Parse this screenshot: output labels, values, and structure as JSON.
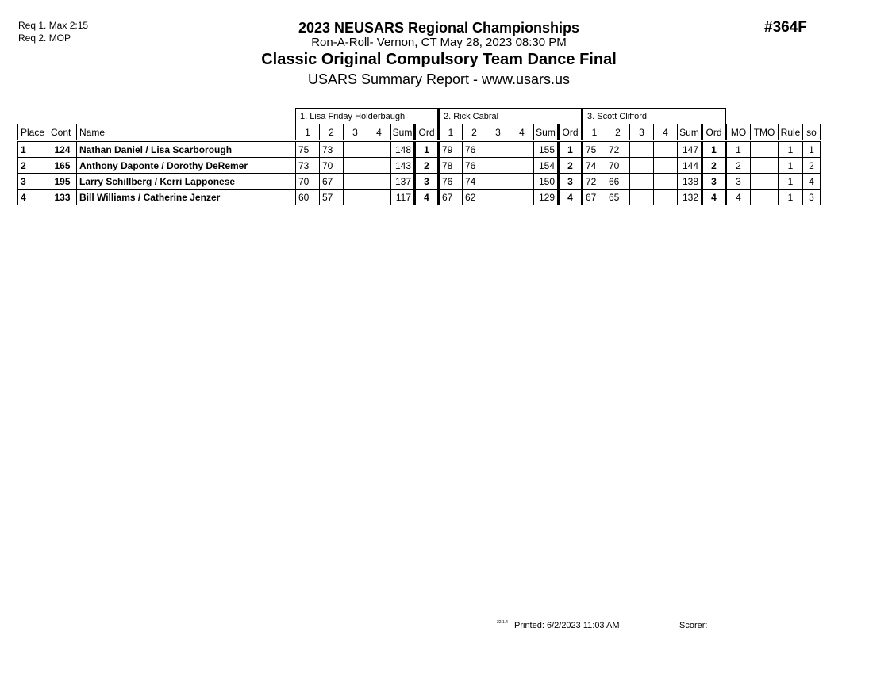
{
  "requirements": [
    "Req  1.  Max 2:15",
    "Req  2.  MOP"
  ],
  "event_code": "#364F",
  "title": "2023 NEUSARS Regional Championships",
  "venue_line": "Ron-A-Roll- Vernon, CT  May 28, 2023  08:30 PM",
  "event_name": "Classic Original Compulsory Team Dance Final",
  "report_line": "USARS Summary Report - www.usars.us",
  "judges": [
    "1.  Lisa Friday Holderbaugh",
    "2.  Rick Cabral",
    "3.  Scott Clifford"
  ],
  "headers": {
    "place": "Place",
    "cont": "Cont",
    "name": "Name",
    "marks": [
      "1",
      "2",
      "3",
      "4"
    ],
    "sum": "Sum",
    "ord": "Ord",
    "mo": "MO",
    "tmo": "TMO",
    "rule": "Rule",
    "so": "so"
  },
  "rows": [
    {
      "place": "1",
      "cont": "124",
      "name": "Nathan Daniel / Lisa Scarborough",
      "judges": [
        {
          "m": [
            "75",
            "73",
            "",
            ""
          ],
          "sum": "148",
          "ord": "1"
        },
        {
          "m": [
            "79",
            "76",
            "",
            ""
          ],
          "sum": "155",
          "ord": "1"
        },
        {
          "m": [
            "75",
            "72",
            "",
            ""
          ],
          "sum": "147",
          "ord": "1"
        }
      ],
      "mo": "1",
      "tmo": "",
      "rule": "1",
      "so": "1"
    },
    {
      "place": "2",
      "cont": "165",
      "name": "Anthony Daponte / Dorothy DeRemer",
      "judges": [
        {
          "m": [
            "73",
            "70",
            "",
            ""
          ],
          "sum": "143",
          "ord": "2"
        },
        {
          "m": [
            "78",
            "76",
            "",
            ""
          ],
          "sum": "154",
          "ord": "2"
        },
        {
          "m": [
            "74",
            "70",
            "",
            ""
          ],
          "sum": "144",
          "ord": "2"
        }
      ],
      "mo": "2",
      "tmo": "",
      "rule": "1",
      "so": "2"
    },
    {
      "place": "3",
      "cont": "195",
      "name": "Larry Schillberg / Kerri Lapponese",
      "judges": [
        {
          "m": [
            "70",
            "67",
            "",
            ""
          ],
          "sum": "137",
          "ord": "3"
        },
        {
          "m": [
            "76",
            "74",
            "",
            ""
          ],
          "sum": "150",
          "ord": "3"
        },
        {
          "m": [
            "72",
            "66",
            "",
            ""
          ],
          "sum": "138",
          "ord": "3"
        }
      ],
      "mo": "3",
      "tmo": "",
      "rule": "1",
      "so": "4"
    },
    {
      "place": "4",
      "cont": "133",
      "name": "Bill Williams / Catherine Jenzer",
      "judges": [
        {
          "m": [
            "60",
            "57",
            "",
            ""
          ],
          "sum": "117",
          "ord": "4"
        },
        {
          "m": [
            "67",
            "62",
            "",
            ""
          ],
          "sum": "129",
          "ord": "4"
        },
        {
          "m": [
            "67",
            "65",
            "",
            ""
          ],
          "sum": "132",
          "ord": "4"
        }
      ],
      "mo": "4",
      "tmo": "",
      "rule": "1",
      "so": "3"
    }
  ],
  "footer": {
    "version": "22.1.4",
    "printed": "Printed:  6/2/2023  11:03 AM",
    "scorer": "Scorer:"
  }
}
